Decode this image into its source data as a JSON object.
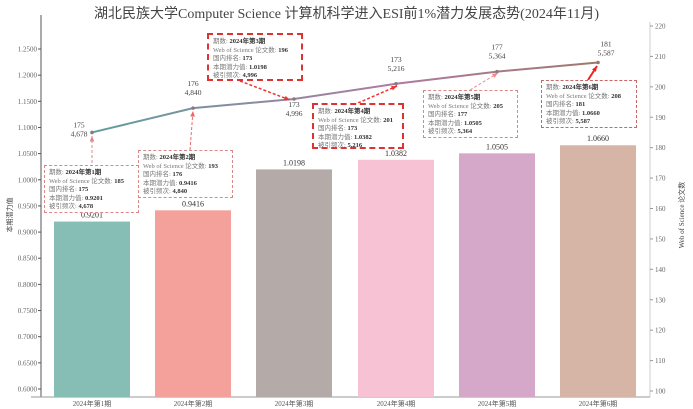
{
  "chart_data": {
    "type": "bar+line",
    "title": "湖北民族大学Computer Science  计算机科学进入ESI前1%潜力发展态势(2024年11月)",
    "categories": [
      "2024年第1期",
      "2024年第2期",
      "2024年第3期",
      "2024年第4期",
      "2024年第5期",
      "2024年第6期"
    ],
    "bar_series": {
      "name": "本期潜力值",
      "values": [
        0.9201,
        0.9416,
        1.0198,
        1.0382,
        1.0505,
        1.066
      ],
      "labels": [
        "0.9201",
        "0.9416",
        "1.0198",
        "1.0382",
        "1.0505",
        "1.0660"
      ],
      "colors": [
        "#86bdb5",
        "#f4a09b",
        "#b4aaa7",
        "#f7c3d4",
        "#d5a7c9",
        "#d6b4a6"
      ]
    },
    "line_series": {
      "name": "Web of Science 论文数",
      "values": [
        185,
        193,
        196,
        201,
        205,
        208
      ],
      "rank": [
        "175",
        "176",
        "173",
        "173",
        "177",
        "181"
      ],
      "citations": [
        "4,678",
        "4,840",
        "4,996",
        "5,216",
        "5,364",
        "5,587"
      ],
      "color_start": "#5f9ea0",
      "color_end": "#a0786e"
    },
    "ylabel_left": "本期潜力值",
    "ylabel_right": "Web of Science 论文数",
    "ylim_left": [
      0.6,
      1.25
    ],
    "yticks_left": [
      "0.6000",
      "0.6500",
      "0.7000",
      "0.7500",
      "0.8000",
      "0.8500",
      "0.9000",
      "0.9500",
      "1.0000",
      "1.0500",
      "1.1000",
      "1.1500",
      "1.2000",
      "1.2500"
    ],
    "ylim_right": [
      100,
      220
    ],
    "yticks_right": [
      "100",
      "110",
      "120",
      "130",
      "140",
      "150",
      "160",
      "170",
      "180",
      "190",
      "200",
      "210",
      "220"
    ],
    "annotations": [
      {
        "k1": "期数:",
        "period": "2024年第1期",
        "k2": "Web of Science 论文数:",
        "papers": "185",
        "k3": "国内排名:",
        "rank": "175",
        "k4": "本期潜力值:",
        "potential": "0.9201",
        "k5": "被引频次:",
        "cites": "4,678"
      },
      {
        "k1": "期数:",
        "period": "2024年第2期",
        "k2": "Web of Science 论文数:",
        "papers": "193",
        "k3": "国内排名:",
        "rank": "176",
        "k4": "本期潜力值:",
        "potential": "0.9416",
        "k5": "被引频次:",
        "cites": "4,840"
      },
      {
        "k1": "期数:",
        "period": "2024年第3期",
        "k2": "Web of Science 论文数:",
        "papers": "196",
        "k3": "国内排名:",
        "rank": "173",
        "k4": "本期潜力值:",
        "potential": "1.0198",
        "k5": "被引频次:",
        "cites": "4,996"
      },
      {
        "k1": "期数:",
        "period": "2024年第4期",
        "k2": "Web of Science 论文数:",
        "papers": "201",
        "k3": "国内排名:",
        "rank": "173",
        "k4": "本期潜力值:",
        "potential": "1.0382",
        "k5": "被引频次:",
        "cites": "5,216"
      },
      {
        "k1": "期数:",
        "period": "2024年第5期",
        "k2": "Web of Science 论文数:",
        "papers": "205",
        "k3": "国内排名:",
        "rank": "177",
        "k4": "本期潜力值:",
        "potential": "1.0505",
        "k5": "被引频次:",
        "cites": "5,364"
      },
      {
        "k1": "期数:",
        "period": "2024年第6期",
        "k2": "Web of Science 论文数:",
        "papers": "208",
        "k3": "国内排名:",
        "rank": "181",
        "k4": "本期潜力值:",
        "potential": "1.0660",
        "k5": "被引频次:",
        "cites": "5,587"
      }
    ]
  }
}
